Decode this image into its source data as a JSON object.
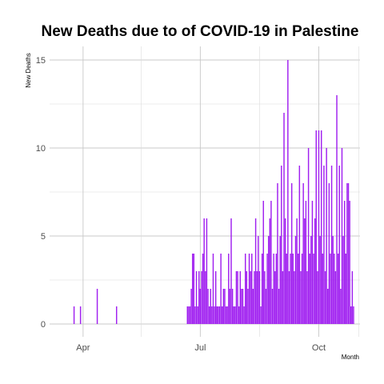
{
  "chart_data": {
    "type": "bar",
    "title": "New Deaths due to of COVID-19 in Palestine",
    "xlabel": "Month",
    "ylabel": "New Deaths",
    "x_ticks": [
      "Apr",
      "Jul",
      "Oct"
    ],
    "y_ticks": [
      "0",
      "5",
      "10",
      "15"
    ],
    "ylim": [
      0,
      15
    ],
    "xlim": [
      "2020-03-06",
      "2020-11-02"
    ],
    "grid": true,
    "bar_color": "#a020f0",
    "series": [
      {
        "x": [
          "2020-03-25",
          "2020-03-30",
          "2020-04-12",
          "2020-04-27",
          "2020-06-21",
          "2020-06-22",
          "2020-06-23",
          "2020-06-24",
          "2020-06-25",
          "2020-06-26",
          "2020-06-27",
          "2020-06-28",
          "2020-06-29",
          "2020-06-30",
          "2020-07-01",
          "2020-07-02",
          "2020-07-03",
          "2020-07-04",
          "2020-07-05",
          "2020-07-06",
          "2020-07-07",
          "2020-07-08",
          "2020-07-09",
          "2020-07-10",
          "2020-07-11",
          "2020-07-12",
          "2020-07-13",
          "2020-07-14",
          "2020-07-15",
          "2020-07-16",
          "2020-07-17",
          "2020-07-18",
          "2020-07-19",
          "2020-07-20",
          "2020-07-21",
          "2020-07-22",
          "2020-07-23",
          "2020-07-24",
          "2020-07-25",
          "2020-07-26",
          "2020-07-27",
          "2020-07-28",
          "2020-07-29",
          "2020-07-30",
          "2020-07-31",
          "2020-08-01",
          "2020-08-02",
          "2020-08-03",
          "2020-08-04",
          "2020-08-05",
          "2020-08-06",
          "2020-08-07",
          "2020-08-08",
          "2020-08-09",
          "2020-08-10",
          "2020-08-11",
          "2020-08-12",
          "2020-08-13",
          "2020-08-14",
          "2020-08-15",
          "2020-08-16",
          "2020-08-17",
          "2020-08-18",
          "2020-08-19",
          "2020-08-20",
          "2020-08-21",
          "2020-08-22",
          "2020-08-23",
          "2020-08-24",
          "2020-08-25",
          "2020-08-26",
          "2020-08-27",
          "2020-08-28",
          "2020-08-29",
          "2020-08-30",
          "2020-08-31",
          "2020-09-01",
          "2020-09-02",
          "2020-09-03",
          "2020-09-04",
          "2020-09-05",
          "2020-09-06",
          "2020-09-07",
          "2020-09-08",
          "2020-09-09",
          "2020-09-10",
          "2020-09-11",
          "2020-09-12",
          "2020-09-13",
          "2020-09-14",
          "2020-09-15",
          "2020-09-16",
          "2020-09-17",
          "2020-09-18",
          "2020-09-19",
          "2020-09-20",
          "2020-09-21",
          "2020-09-22",
          "2020-09-23",
          "2020-09-24",
          "2020-09-25",
          "2020-09-26",
          "2020-09-27",
          "2020-09-28",
          "2020-09-29",
          "2020-09-30",
          "2020-10-01",
          "2020-10-02",
          "2020-10-03",
          "2020-10-04",
          "2020-10-05",
          "2020-10-06",
          "2020-10-07",
          "2020-10-08",
          "2020-10-09",
          "2020-10-10",
          "2020-10-11",
          "2020-10-12",
          "2020-10-13",
          "2020-10-14",
          "2020-10-15",
          "2020-10-16",
          "2020-10-17",
          "2020-10-18",
          "2020-10-19",
          "2020-10-20",
          "2020-10-21",
          "2020-10-22",
          "2020-10-23",
          "2020-10-24",
          "2020-10-25",
          "2020-10-26",
          "2020-10-27",
          "2020-10-28"
        ],
        "values": [
          1,
          1,
          2,
          1,
          1,
          1,
          1,
          2,
          4,
          4,
          1,
          3,
          1,
          3,
          2,
          3,
          4,
          6,
          3,
          6,
          2,
          1,
          2,
          1,
          4,
          1,
          3,
          1,
          1,
          1,
          4,
          1,
          2,
          2,
          1,
          1,
          4,
          2,
          6,
          2,
          1,
          1,
          3,
          3,
          1,
          3,
          2,
          2,
          1,
          4,
          3,
          2,
          4,
          3,
          4,
          2,
          3,
          6,
          3,
          5,
          3,
          1,
          4,
          7,
          3,
          2,
          4,
          5,
          6,
          7,
          2,
          4,
          3,
          4,
          8,
          2,
          5,
          9,
          3,
          12,
          6,
          4,
          15,
          3,
          4,
          8,
          4,
          3,
          5,
          6,
          4,
          9,
          3,
          4,
          8,
          6,
          7,
          3,
          10,
          4,
          5,
          7,
          4,
          6,
          11,
          3,
          11,
          5,
          11,
          4,
          9,
          3,
          10,
          2,
          8,
          4,
          9,
          5,
          4,
          3,
          13,
          4,
          9,
          2,
          10,
          5,
          7,
          4,
          8,
          8,
          7,
          1,
          3,
          1
        ]
      }
    ]
  }
}
